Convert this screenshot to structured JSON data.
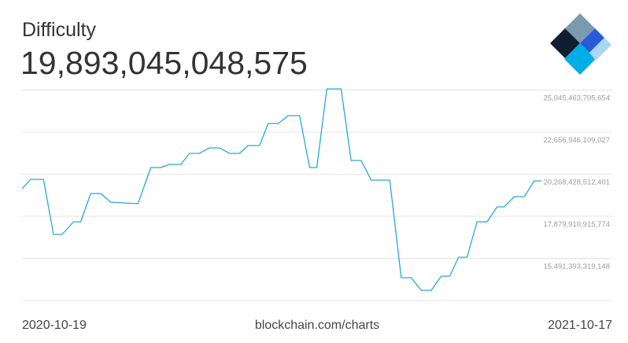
{
  "chart_data": {
    "type": "line",
    "title": "Difficulty",
    "subtitle": "19,893,045,048,575",
    "source": "blockchain.com/charts",
    "x": [
      "2020-10-19",
      "2020-10-25",
      "2020-11-03",
      "2020-11-10",
      "2020-11-16",
      "2020-11-24",
      "2020-11-29",
      "2020-12-06",
      "2020-12-13",
      "2020-12-20",
      "2020-12-30",
      "2021-01-08",
      "2021-01-17",
      "2021-01-24",
      "2021-01-30",
      "2021-02-07",
      "2021-02-13",
      "2021-02-20",
      "2021-02-27",
      "2021-03-06",
      "2021-03-13",
      "2021-03-20",
      "2021-03-26",
      "2021-04-03",
      "2021-04-09",
      "2021-04-16",
      "2021-04-23",
      "2021-05-01",
      "2021-05-08",
      "2021-05-13",
      "2021-05-20",
      "2021-05-30",
      "2021-06-06",
      "2021-06-13",
      "2021-06-20",
      "2021-07-03",
      "2021-07-11",
      "2021-07-18",
      "2021-07-25",
      "2021-08-01",
      "2021-08-08",
      "2021-08-14",
      "2021-08-20",
      "2021-08-26",
      "2021-09-02",
      "2021-09-09",
      "2021-09-16",
      "2021-09-21",
      "2021-09-28",
      "2021-10-05",
      "2021-10-12",
      "2021-10-17"
    ],
    "series": [
      {
        "name": "Difficulty",
        "color": "#27a8dc",
        "values": [
          19442000000000,
          19978000000000,
          19978000000000,
          16853000000000,
          16853000000000,
          17567000000000,
          17567000000000,
          19175000000000,
          19175000000000,
          18683000000000,
          18639000000000,
          18594000000000,
          20648000000000,
          20648000000000,
          20826000000000,
          20826000000000,
          21452000000000,
          21452000000000,
          21764000000000,
          21764000000000,
          21452000000000,
          21452000000000,
          21898000000000,
          21898000000000,
          23148000000000,
          23148000000000,
          23594000000000,
          23594000000000,
          20648000000000,
          20648000000000,
          25112000000000,
          25112000000000,
          21050000000000,
          21050000000000,
          19934000000000,
          19934000000000,
          14398000000000,
          14398000000000,
          13683000000000,
          13683000000000,
          14487000000000,
          14487000000000,
          15558000000000,
          15558000000000,
          17567000000000,
          17567000000000,
          18416000000000,
          18416000000000,
          18996000000000,
          18996000000000,
          19889000000000,
          19893045048575
        ]
      }
    ],
    "xlim": [
      "2020-10-19",
      "2021-10-17"
    ],
    "ylim": [
      13102875922521,
      25134000000000
    ],
    "yticks": [
      {
        "value": 15491393319148,
        "label": "15,491,393,319,148"
      },
      {
        "value": 17879910915774,
        "label": "17,879,910,915,774"
      },
      {
        "value": 20268428512401,
        "label": "20,268,428,512,401"
      },
      {
        "value": 22656946109027,
        "label": "22,656,946,109,027"
      },
      {
        "value": 25045463705654,
        "label": "25,045,463,705,654"
      }
    ],
    "grid": true
  }
}
